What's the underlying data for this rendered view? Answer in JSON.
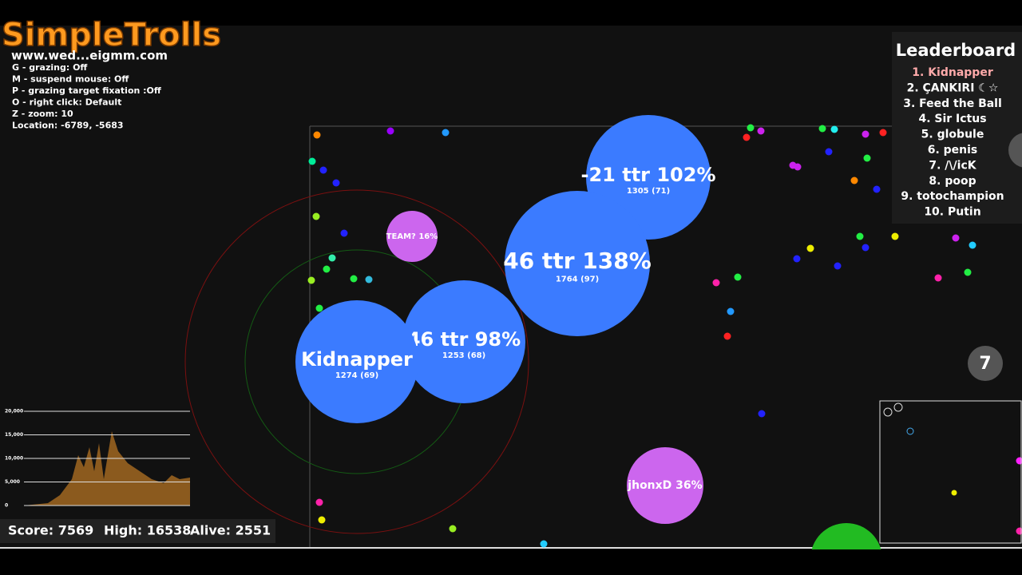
{
  "watermark": {
    "title": "SimpleTrolls",
    "url": "www.wed...eigmm.com"
  },
  "settings": [
    "G - grazing: Off",
    "M - suspend mouse: Off",
    "P - grazing target fixation :Off",
    "O - right click: Default",
    "Z - zoom: 10",
    "Location: -6789, -5683"
  ],
  "leaderboard": {
    "title": "Leaderboard",
    "entries": [
      "1. Kidnapper",
      "2. ÇANKIRI ☾☆",
      "3. Feed the Ball",
      "4. Sir Ictus",
      "5. globule",
      "6. penis",
      "7. /\\/icK",
      "8. poop",
      "9. totochampion",
      "10. Putin"
    ]
  },
  "cells": [
    {
      "name": "-21 ttr 102%",
      "mass": "1305 (71)"
    },
    {
      "name": "46 ttr 138%",
      "mass": "1764 (97)"
    },
    {
      "name": "46 ttr 98%",
      "mass": "1253 (68)"
    },
    {
      "name": "Kidnapper",
      "mass": "1274 (69)"
    },
    {
      "name": "TEAM? 16%"
    },
    {
      "name": "jhonxD 36%"
    }
  ],
  "badge": "7",
  "graph": {
    "labels": [
      "20,000",
      "15,000",
      "10,000",
      "5,000",
      "0"
    ]
  },
  "stats": {
    "score": "Score: 7569",
    "high": "High: 16538",
    "alive": "Alive: 2551"
  }
}
